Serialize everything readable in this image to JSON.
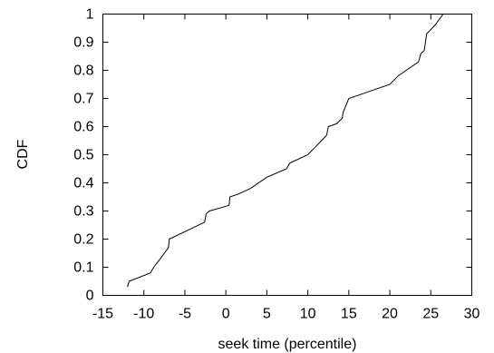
{
  "chart_data": {
    "type": "line",
    "title": "",
    "xlabel": "seek time (percentile)",
    "ylabel": "CDF",
    "xlim": [
      -15,
      30
    ],
    "ylim": [
      0,
      1
    ],
    "xticks": [
      -15,
      -10,
      -5,
      0,
      5,
      10,
      15,
      20,
      25,
      30
    ],
    "yticks": [
      0,
      0.1,
      0.2,
      0.3,
      0.4,
      0.5,
      0.6,
      0.7,
      0.8,
      0.9,
      1
    ],
    "grid": false,
    "legend": "none",
    "series": [
      {
        "x": [
          -12.0,
          -11.8,
          -9.2,
          -8.8,
          -8.0,
          -7.0,
          -6.9,
          -2.6,
          -2.4,
          -2.0,
          0.4,
          0.5,
          1.5,
          3.0,
          5.0,
          7.4,
          7.8,
          10.0,
          11.0,
          12.0,
          12.3,
          12.5,
          13.5,
          14.2,
          14.3,
          15.0,
          17.0,
          20.0,
          21.0,
          22.5,
          23.5,
          23.8,
          24.2,
          24.5,
          25.5,
          26.5
        ],
        "y": [
          0.03,
          0.05,
          0.08,
          0.1,
          0.13,
          0.17,
          0.2,
          0.26,
          0.29,
          0.3,
          0.32,
          0.35,
          0.36,
          0.38,
          0.42,
          0.45,
          0.47,
          0.5,
          0.53,
          0.56,
          0.57,
          0.6,
          0.61,
          0.63,
          0.65,
          0.7,
          0.72,
          0.75,
          0.78,
          0.81,
          0.83,
          0.86,
          0.87,
          0.93,
          0.96,
          1.0
        ]
      }
    ]
  }
}
